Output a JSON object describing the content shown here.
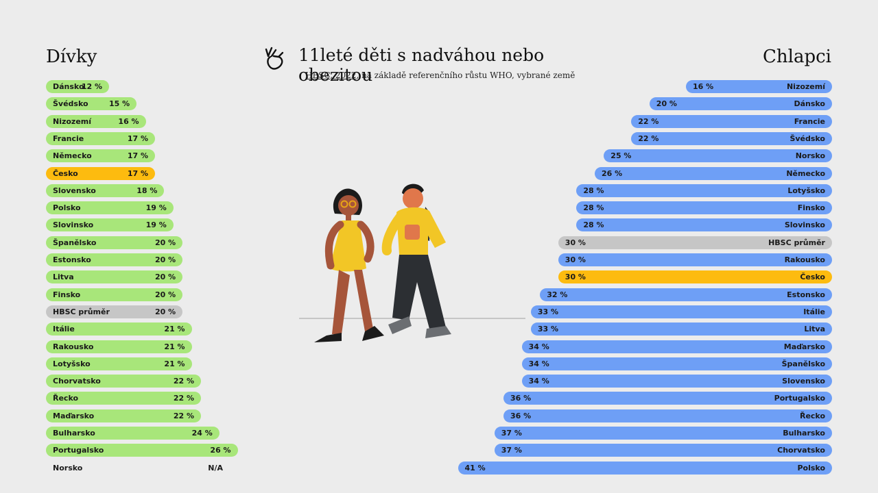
{
  "title": "11leté děti s nadváhou nebo obezitou",
  "subtitle": {
    "source": "HBSC, 2022",
    "rest": ", na základě referenčního růstu WHO, vybrané země"
  },
  "girls_heading": "Dívky",
  "boys_heading": "Chlapci",
  "colors": {
    "girls": "#a8e67a",
    "boys": "#6e9ff6",
    "highlight": "#fdbb0f",
    "average": "#c6c6c6"
  },
  "icons": [
    "hand-icon",
    "children-illustration"
  ],
  "chart_data": [
    {
      "type": "bar",
      "title": "Dívky",
      "unit": "%",
      "categories": [
        "Dánsko",
        "Švédsko",
        "Nizozemí",
        "Francie",
        "Německo",
        "Česko",
        "Slovensko",
        "Polsko",
        "Slovinsko",
        "Španělsko",
        "Estonsko",
        "Litva",
        "Finsko",
        "HBSC průměr",
        "Itálie",
        "Rakousko",
        "Lotyšsko",
        "Chorvatsko",
        "Řecko",
        "Maďarsko",
        "Bulharsko",
        "Portugalsko",
        "Norsko"
      ],
      "values": [
        12,
        15,
        16,
        17,
        17,
        17,
        18,
        19,
        19,
        20,
        20,
        20,
        20,
        20,
        21,
        21,
        21,
        22,
        22,
        22,
        24,
        26,
        null
      ],
      "value_labels": [
        "12 %",
        "15 %",
        "16 %",
        "17 %",
        "17 %",
        "17 %",
        "18 %",
        "19 %",
        "19 %",
        "20 %",
        "20 %",
        "20 %",
        "20 %",
        "20 %",
        "21 %",
        "21 %",
        "21 %",
        "22 %",
        "22 %",
        "22 %",
        "24 %",
        "26 %",
        "N/A"
      ],
      "highlight": "Česko",
      "average": "HBSC průměr"
    },
    {
      "type": "bar",
      "title": "Chlapci",
      "unit": "%",
      "categories": [
        "Nizozemí",
        "Dánsko",
        "Francie",
        "Švédsko",
        "Norsko",
        "Německo",
        "Lotyšsko",
        "Finsko",
        "Slovinsko",
        "HBSC průměr",
        "Rakousko",
        "Česko",
        "Estonsko",
        "Itálie",
        "Litva",
        "Maďarsko",
        "Španělsko",
        "Slovensko",
        "Portugalsko",
        "Řecko",
        "Bulharsko",
        "Chorvatsko",
        "Polsko"
      ],
      "values": [
        16,
        20,
        22,
        22,
        25,
        26,
        28,
        28,
        28,
        30,
        30,
        30,
        32,
        33,
        33,
        34,
        34,
        34,
        36,
        36,
        37,
        37,
        41
      ],
      "value_labels": [
        "16 %",
        "20 %",
        "22 %",
        "22 %",
        "25 %",
        "26 %",
        "28 %",
        "28 %",
        "28 %",
        "30 %",
        "30 %",
        "30 %",
        "32 %",
        "33 %",
        "33 %",
        "34 %",
        "34 %",
        "34 %",
        "36 %",
        "36 %",
        "37 %",
        "37 %",
        "41 %"
      ],
      "highlight": "Česko",
      "average": "HBSC průměr"
    }
  ]
}
